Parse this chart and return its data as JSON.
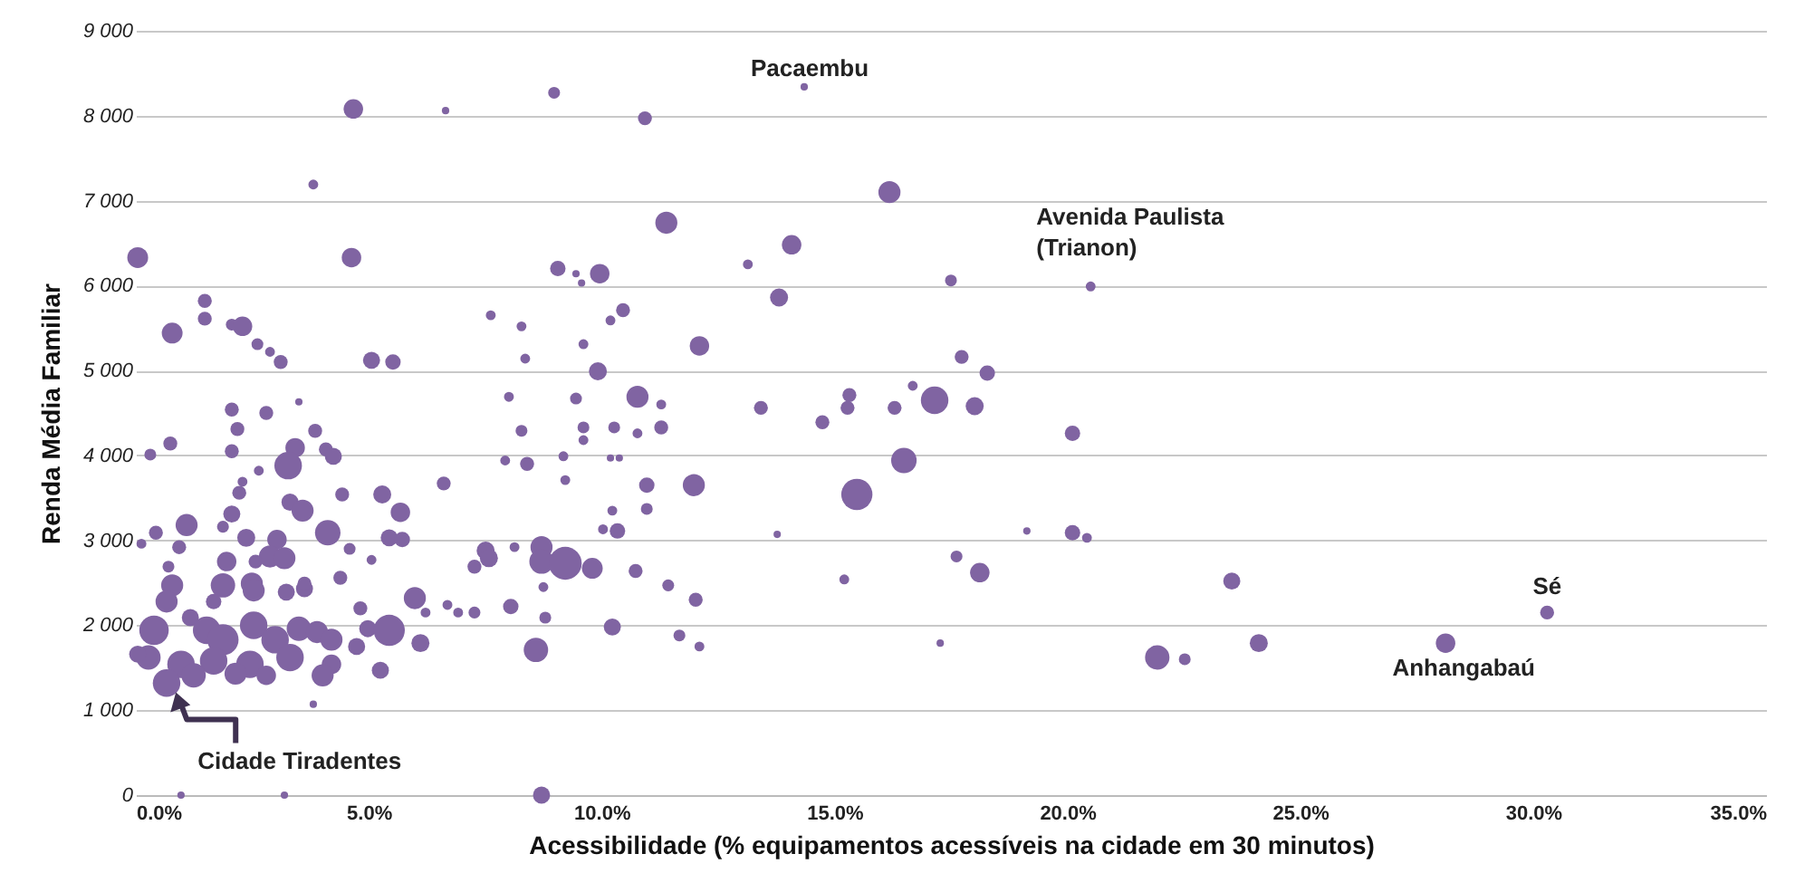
{
  "chart_data": {
    "type": "bubble",
    "xlabel": "Acessibilidade (% equipamentos acessíveis na cidade em 30 minutos)",
    "ylabel": "Renda Média Familiar",
    "xlim": [
      0,
      35
    ],
    "ylim": [
      0,
      9000
    ],
    "xticks": [
      {
        "value": 0,
        "label": "0.0%"
      },
      {
        "value": 5,
        "label": "5.0%"
      },
      {
        "value": 10,
        "label": "10.0%"
      },
      {
        "value": 15,
        "label": "15.0%"
      },
      {
        "value": 20,
        "label": "20.0%"
      },
      {
        "value": 25,
        "label": "25.0%"
      },
      {
        "value": 30,
        "label": "30.0%"
      },
      {
        "value": 35,
        "label": "35.0%"
      }
    ],
    "yticks": [
      0,
      {
        "value": 1000,
        "label": "1 000"
      },
      {
        "value": 2000,
        "label": "2 000"
      },
      {
        "value": 3000,
        "label": "3 000"
      },
      {
        "value": 4000,
        "label": "4 000"
      },
      {
        "value": 5000,
        "label": "5 000"
      },
      {
        "value": 6000,
        "label": "6 000"
      },
      {
        "value": 7000,
        "label": "7 000"
      },
      {
        "value": 8000,
        "label": "8 000"
      },
      {
        "value": 9000,
        "label": "9 000"
      }
    ],
    "grid": "y",
    "marker": "circle",
    "x": [
      0.04,
      0.78,
      1.48,
      1.48,
      2.06,
      2.29,
      2.61,
      2.88,
      3.11,
      3.81,
      4.67,
      4.63,
      5.06,
      5.52,
      6.65,
      7.62,
      8.28,
      8.36,
      8.98,
      9.06,
      9.45,
      9.57,
      9.96,
      9.61,
      10.19,
      10.46,
      10.93,
      9.92,
      16.18,
      11.39,
      14.08,
      13.14,
      17.5,
      13.81,
      12.1,
      17.73,
      18.28,
      8.01,
      9.45,
      10.77,
      11.28,
      13.42,
      14.74,
      15.32,
      15.28,
      16.29,
      16.68,
      17.15,
      18.01,
      8.28,
      9.61,
      9.61,
      10.27,
      10.77,
      11.28,
      7.93,
      8.4,
      9.18,
      10.19,
      10.38,
      16.49,
      9.22,
      10.97,
      11.98,
      15.48,
      10.23,
      10.97,
      10.03,
      10.34,
      13.77,
      7.51,
      7.58,
      7.27,
      8.13,
      8.71,
      8.71,
      9.22,
      9.8,
      10.73,
      17.62,
      18.12,
      8.75,
      11.43,
      15.21,
      12.02,
      8.05,
      7.27,
      6.92,
      8.79,
      10.23,
      11.67,
      12.1,
      17.27,
      8.59,
      8.71,
      20.11,
      19.13,
      20.11,
      20.42,
      23.53,
      21.93,
      22.52,
      24.11,
      28.12,
      30.3,
      20.5,
      14.35,
      2.06,
      2.8,
      3.5,
      2.18,
      3.85,
      0.74,
      0.31,
      2.06,
      3.42,
      4.08,
      4.24,
      3.27,
      2.64,
      6.61,
      2.29,
      2.22,
      3.31,
      3.58,
      4.43,
      5.29,
      5.68,
      2.06,
      1.09,
      0.43,
      1.87,
      2.37,
      4.12,
      3.03,
      5.44,
      5.72,
      0.12,
      0.93,
      2.88,
      4.59,
      1.95,
      3.19,
      5.06,
      0.7,
      2.57,
      0.78,
      1.87,
      2.49,
      3.23,
      3.62,
      4.39,
      0.66,
      1.67,
      2.53,
      3.62,
      5.99,
      6.22,
      6.69,
      4.82,
      1.17,
      0.39,
      1.52,
      1.87,
      2.53,
      2.99,
      3.5,
      3.89,
      4.2,
      4.74,
      4.98,
      5.44,
      6.11,
      4.2,
      3.31,
      2.45,
      1.67,
      0.97,
      0.27,
      0.66,
      1.24,
      2.14,
      2.8,
      4.01,
      5.25,
      3.81,
      0.97,
      3.19,
      0.04
    ],
    "series": [
      {
        "color": "#8064a2",
        "values": [
          6330,
          5440,
          5820,
          5610,
          5540,
          5520,
          5310,
          5220,
          5100,
          7190,
          8080,
          6330,
          5120,
          5100,
          8060,
          5650,
          5520,
          5140,
          8270,
          6200,
          6140,
          6030,
          6140,
          5310,
          5590,
          5710,
          7970,
          4990,
          7100,
          6740,
          6480,
          6250,
          6060,
          5860,
          5290,
          5160,
          4970,
          4690,
          4670,
          4690,
          4600,
          4560,
          4390,
          4710,
          4560,
          4560,
          4820,
          4650,
          4580,
          4290,
          4330,
          4180,
          4330,
          4260,
          4330,
          3940,
          3900,
          3990,
          3970,
          3970,
          3940,
          3710,
          3650,
          3650,
          3540,
          3350,
          3370,
          3130,
          3110,
          3070,
          2880,
          2790,
          2690,
          2920,
          2920,
          2750,
          2730,
          2670,
          2640,
          2810,
          2620,
          2450,
          2470,
          2540,
          2300,
          2220,
          2150,
          2150,
          2090,
          1980,
          1880,
          1750,
          1790,
          1710,
          0,
          4260,
          3110,
          3090,
          3030,
          2520,
          1620,
          1600,
          1790,
          1790,
          2150,
          5990,
          8340,
          4540,
          4500,
          4630,
          4310,
          4290,
          4140,
          4010,
          4050,
          4090,
          4070,
          3990,
          3880,
          3820,
          3670,
          3690,
          3560,
          3450,
          3350,
          3540,
          3540,
          3330,
          3310,
          3180,
          3090,
          3160,
          3030,
          3090,
          3010,
          3030,
          3010,
          2960,
          2920,
          2810,
          2900,
          2750,
          2790,
          2770,
          2690,
          2750,
          2470,
          2470,
          2490,
          2390,
          2430,
          2560,
          2280,
          2280,
          2410,
          2490,
          2320,
          2150,
          2240,
          2200,
          2090,
          1940,
          1940,
          1830,
          2000,
          1830,
          1960,
          1920,
          1830,
          1750,
          1960,
          1940,
          1790,
          1540,
          1620,
          1540,
          1580,
          1540,
          1620,
          1320,
          1410,
          1430,
          1410,
          1410,
          1470,
          1070,
          0,
          0,
          1660
        ],
        "sizes": [
          0.4,
          0.4,
          0.18,
          0.18,
          0.13,
          0.35,
          0.13,
          0.09,
          0.18,
          0.09,
          0.35,
          0.35,
          0.27,
          0.22,
          0.05,
          0.09,
          0.09,
          0.09,
          0.13,
          0.22,
          0.05,
          0.05,
          0.35,
          0.09,
          0.09,
          0.18,
          0.18,
          0.3,
          0.45,
          0.45,
          0.35,
          0.09,
          0.13,
          0.3,
          0.35,
          0.18,
          0.22,
          0.09,
          0.13,
          0.45,
          0.09,
          0.18,
          0.18,
          0.18,
          0.18,
          0.18,
          0.09,
          0.7,
          0.3,
          0.13,
          0.13,
          0.09,
          0.13,
          0.09,
          0.18,
          0.09,
          0.18,
          0.09,
          0.05,
          0.05,
          0.6,
          0.09,
          0.22,
          0.45,
          0.9,
          0.09,
          0.13,
          0.09,
          0.22,
          0.05,
          0.3,
          0.3,
          0.18,
          0.09,
          0.45,
          0.55,
          1,
          0.4,
          0.18,
          0.13,
          0.35,
          0.09,
          0.13,
          0.09,
          0.18,
          0.22,
          0.13,
          0.09,
          0.13,
          0.27,
          0.13,
          0.09,
          0.05,
          0.55,
          0.27,
          0.22,
          0.05,
          0.22,
          0.09,
          0.27,
          0.55,
          0.13,
          0.3,
          0.35,
          0.18,
          0.09,
          0.05,
          0.18,
          0.18,
          0.05,
          0.18,
          0.18,
          0.18,
          0.13,
          0.18,
          0.35,
          0.18,
          0.27,
          0.7,
          0.09,
          0.18,
          0.09,
          0.18,
          0.27,
          0.45,
          0.18,
          0.3,
          0.35,
          0.27,
          0.45,
          0.18,
          0.13,
          0.3,
          0.6,
          0.35,
          0.27,
          0.22,
          0.09,
          0.18,
          0.45,
          0.13,
          0.35,
          0.45,
          0.09,
          0.13,
          0.18,
          0.45,
          0.55,
          0.45,
          0.27,
          0.27,
          0.18,
          0.45,
          0.22,
          0.45,
          0.18,
          0.45,
          0.09,
          0.09,
          0.18,
          0.27,
          0.8,
          0.7,
          0.9,
          0.7,
          0.7,
          0.55,
          0.45,
          0.45,
          0.27,
          0.27,
          0.9,
          0.3,
          0.35,
          0.7,
          0.7,
          0.7,
          0.7,
          0.55,
          0.7,
          0.55,
          0.45,
          0.35,
          0.45,
          0.27,
          0.05,
          0.05,
          0.05,
          0.27
        ]
      }
    ],
    "annotations": [
      {
        "text": "Pacaembu",
        "x": 14.35,
        "y": 8340
      },
      {
        "text": "Avenida Paulista (Trianon)",
        "x": 20.5,
        "y": 5990
      },
      {
        "text": "Sé",
        "x": 30.3,
        "y": 2150
      },
      {
        "text": "Anhangabaú",
        "x": 28.12,
        "y": 1790
      },
      {
        "text": "Cidade Tiradentes",
        "x": 0.86,
        "y": 1210
      }
    ]
  }
}
